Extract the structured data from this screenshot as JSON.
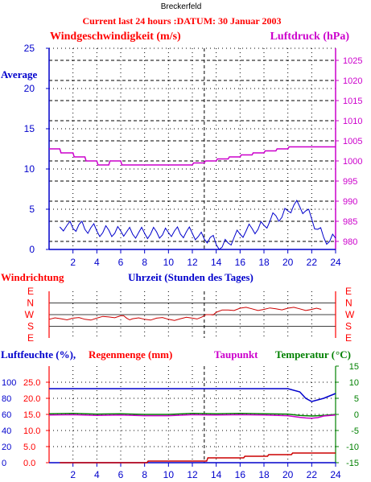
{
  "station_title": "Breckerfeld",
  "subtitle": "Current last 24 hours :DATUM: 30 Januar 2003",
  "colors": {
    "red": "#ff0000",
    "blue": "#0000cc",
    "magenta": "#cc00cc",
    "green": "#008000",
    "darkred": "#cc0000",
    "grid": "#000000"
  },
  "chart_data": [
    {
      "type": "line",
      "panel": "wind-pressure",
      "left_axis_label": "Windgeschwindigkeit (m/s)",
      "right_axis_label": "Luftdruck (hPa)",
      "left_inner_label": "Average",
      "x": {
        "label": "Uhrzeit (Stunden des Tages)",
        "range": [
          0,
          24
        ],
        "ticks": [
          2,
          4,
          6,
          8,
          10,
          12,
          14,
          16,
          18,
          20,
          22,
          24
        ]
      },
      "y_left": {
        "range": [
          0,
          25
        ],
        "ticks": [
          0,
          5,
          10,
          15,
          20,
          25
        ]
      },
      "y_right": {
        "range": [
          978,
          1028
        ],
        "ticks": [
          980,
          985,
          990,
          995,
          1000,
          1005,
          1010,
          1015,
          1020,
          1025
        ]
      },
      "series": [
        {
          "axis": "left",
          "color": "#0000cc",
          "x": [
            0.9,
            1.5,
            2.0,
            2.5,
            3.0,
            3.5,
            4.0,
            4.5,
            5.0,
            5.5,
            6.0,
            6.5,
            7.0,
            7.5,
            8.0,
            8.5,
            9.0,
            9.5,
            10.0,
            10.5,
            11.0,
            11.5,
            12.0,
            12.5,
            13.0,
            13.5,
            14.0,
            14.5,
            15.0,
            15.5,
            16.0,
            16.5,
            17.0,
            17.5,
            18.0,
            18.5,
            19.0,
            19.5,
            20.0,
            20.5,
            21.0,
            21.5,
            22.0,
            22.5,
            23.0,
            23.5,
            24.0
          ],
          "values": [
            2.8,
            3.0,
            2.6,
            3.1,
            2.5,
            2.7,
            2.3,
            2.1,
            2.4,
            2.0,
            2.3,
            2.2,
            1.9,
            2.1,
            2.0,
            1.9,
            2.2,
            1.8,
            2.1,
            2.3,
            1.9,
            2.2,
            2.0,
            1.6,
            1.3,
            1.5,
            0.6,
            0.3,
            0.8,
            1.5,
            1.9,
            2.3,
            2.6,
            2.5,
            3.0,
            3.5,
            4.2,
            4.0,
            4.8,
            5.5,
            5.3,
            4.8,
            3.8,
            2.5,
            1.5,
            1.0,
            1.4
          ]
        },
        {
          "axis": "right",
          "color": "#cc00cc",
          "x": [
            0.0,
            0.9,
            1.0,
            2.0,
            2.1,
            3.0,
            3.1,
            4.0,
            4.1,
            5.0,
            5.1,
            6.0,
            6.1,
            12.0,
            12.1,
            13.0,
            13.1,
            14.0,
            14.1,
            15.0,
            15.1,
            16.0,
            16.1,
            17.0,
            17.1,
            18.0,
            18.1,
            19.0,
            19.1,
            20.0,
            20.1,
            24.0
          ],
          "values": [
            1003.0,
            1003.0,
            1002.0,
            1002.0,
            1001.0,
            1001.0,
            1000.0,
            1000.0,
            999.0,
            999.0,
            1000.0,
            1000.0,
            999.0,
            999.0,
            999.5,
            999.5,
            1000.0,
            1000.0,
            1000.5,
            1000.5,
            1001.0,
            1001.0,
            1001.5,
            1001.5,
            1002.0,
            1002.0,
            1002.5,
            1002.5,
            1003.0,
            1003.0,
            1003.5,
            1003.5
          ]
        }
      ]
    },
    {
      "type": "line",
      "panel": "wind-direction",
      "left_axis_label": "Windrichtung",
      "x_label": "Uhrzeit (Stunden des Tages)",
      "direction_labels": [
        "E",
        "N",
        "W",
        "S",
        "E"
      ],
      "series": [
        {
          "color": "#cc0000",
          "x": [
            0.0,
            1.0,
            2.0,
            3.0,
            4.0,
            5.0,
            6.0,
            6.5,
            7.0,
            8.0,
            9.0,
            10.0,
            11.0,
            12.0,
            12.8,
            13.5,
            14.0,
            15.0,
            16.0,
            17.0,
            18.0,
            19.0,
            20.0,
            21.0,
            22.0,
            22.8
          ],
          "direction_index": [
            2.4,
            2.35,
            2.3,
            2.4,
            2.3,
            2.2,
            2.1,
            2.3,
            2.35,
            2.4,
            2.3,
            2.4,
            2.35,
            2.3,
            2.2,
            2.0,
            1.8,
            1.6,
            1.45,
            1.5,
            1.55,
            1.5,
            1.45,
            1.5,
            1.55,
            1.55
          ]
        }
      ]
    },
    {
      "type": "line",
      "panel": "humidity-rain-dew-temperature",
      "labels": {
        "humidity": "Luftfeuchte (%),",
        "rain": "Regenmenge (mm)",
        "dewpoint": "Taupunkt",
        "temperature": "Temperatur (",
        "temperature_unit": "°C)"
      },
      "x": {
        "range": [
          0,
          24
        ],
        "ticks": [
          2,
          4,
          6,
          8,
          10,
          12,
          14,
          16,
          18,
          20,
          22,
          24
        ]
      },
      "humidity_ticks": [
        0,
        20,
        40,
        60,
        80,
        100
      ],
      "rain_ticks": [
        "0.0",
        "5.0",
        "10.0",
        "15.0",
        "20.0",
        "25.0"
      ],
      "temperature_ticks": [
        -15,
        -10,
        -5,
        0,
        5,
        10,
        15
      ],
      "temperature_range": [
        -15,
        15
      ],
      "series": [
        {
          "name": "Luftfeuchte",
          "color": "#0000cc",
          "scale": "temperature",
          "x": [
            0,
            19,
            20,
            21,
            21.5,
            22,
            23,
            24
          ],
          "values": [
            8,
            8,
            8,
            7,
            5,
            4,
            5,
            6.5
          ]
        },
        {
          "name": "Temperatur",
          "color": "#008000",
          "scale": "temperature",
          "x": [
            0,
            2,
            4,
            6,
            8,
            10,
            12,
            14,
            16,
            18,
            20,
            21,
            22,
            23,
            24
          ],
          "values": [
            0.2,
            0.3,
            0.1,
            0.2,
            0.0,
            0.0,
            0.3,
            0.2,
            0.3,
            0.2,
            0.1,
            -0.3,
            -0.5,
            -0.3,
            0.0
          ]
        },
        {
          "name": "Taupunkt",
          "color": "#cc00cc",
          "scale": "temperature",
          "x": [
            0,
            2,
            4,
            6,
            8,
            10,
            12,
            14,
            16,
            18,
            20,
            21,
            21.5,
            22,
            22.5,
            23,
            24
          ],
          "values": [
            -0.2,
            -0.1,
            -0.3,
            -0.2,
            -0.4,
            -0.4,
            -0.1,
            -0.2,
            -0.1,
            -0.2,
            -0.4,
            -0.9,
            -1.1,
            -1.2,
            -1.0,
            -0.5,
            -0.2
          ]
        },
        {
          "name": "Regenmenge",
          "color": "#cc0000",
          "scale": "rain",
          "x": [
            0.9,
            8.2,
            8.3,
            13.2,
            13.3,
            16.3,
            16.4,
            18.3,
            18.4,
            20.3,
            20.4,
            24.0
          ],
          "values": [
            0.0,
            0.0,
            0.5,
            0.5,
            1.5,
            1.5,
            2.0,
            2.0,
            2.5,
            2.5,
            3.0,
            3.0
          ]
        }
      ]
    }
  ]
}
